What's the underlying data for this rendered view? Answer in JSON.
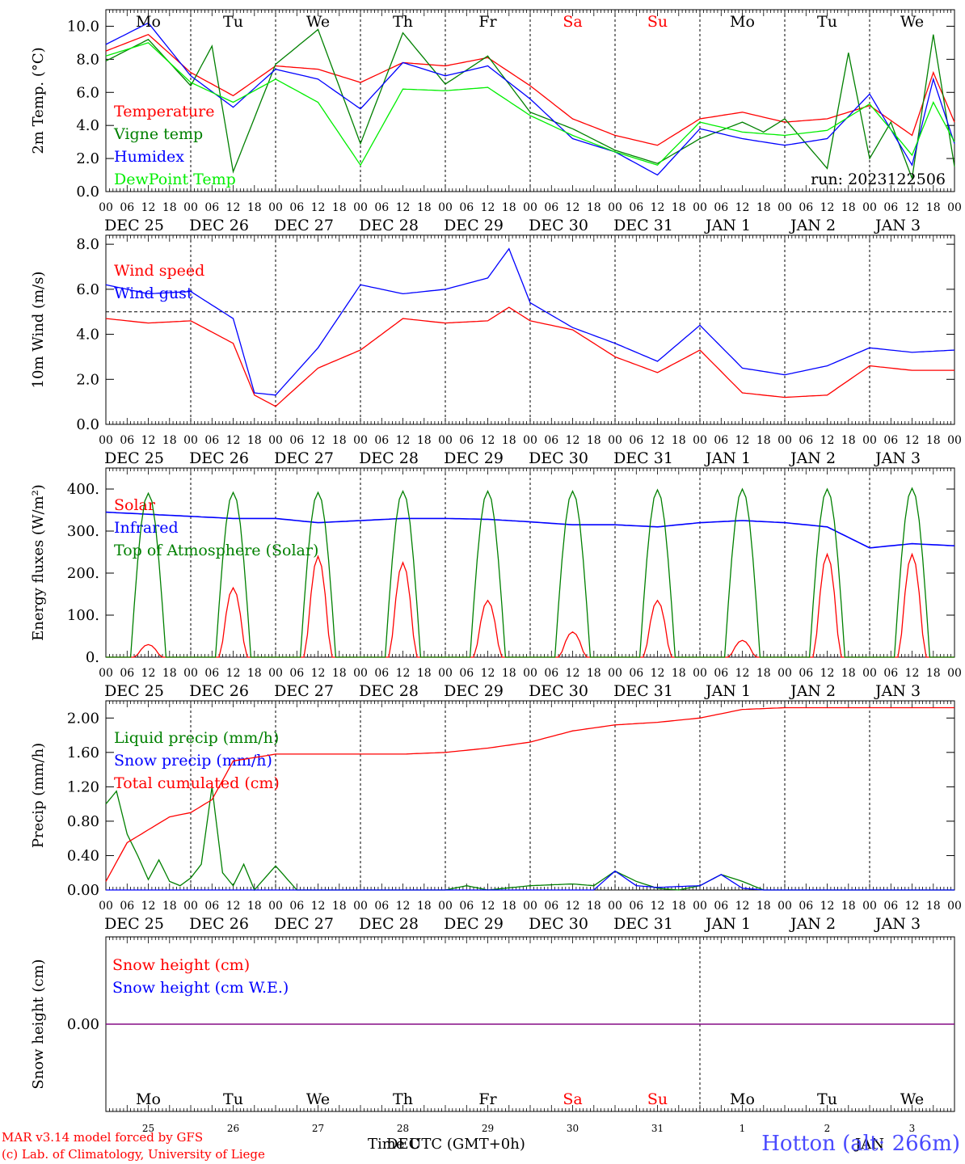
{
  "colors": {
    "red": "#ff0000",
    "green": "#008000",
    "blue": "#0000ff",
    "lightgreen": "#00ee00",
    "purple": "#800080",
    "black": "#000000"
  },
  "time_axis": {
    "hour_labels": [
      "00",
      "06",
      "12",
      "18"
    ],
    "final_label": "00",
    "day_labels": [
      "DEC 25",
      "DEC 26",
      "DEC 27",
      "DEC 28",
      "DEC 29",
      "DEC 30",
      "DEC 31",
      "JAN  1",
      "JAN  2",
      "JAN  3"
    ],
    "weekdays": [
      "Mo",
      "Tu",
      "We",
      "Th",
      "Fr",
      "Sa",
      "Su",
      "Mo",
      "Tu",
      "We"
    ],
    "weekend_color_days": [
      5,
      6
    ],
    "day_numbers": [
      "25",
      "26",
      "27",
      "28",
      "29",
      "30",
      "31",
      "1",
      "2",
      "3"
    ]
  },
  "footer": {
    "xlabel": "Time UTC (GMT+0h)",
    "overlap_label_1": "DEC",
    "overlap_label_2": "JAN",
    "credit_line1": "MAR v3.14 model forced by GFS",
    "credit_line2": "(c) Lab. of Climatology, University of Liege",
    "station": "Hotton (alt: 266m)"
  },
  "chart_data": [
    {
      "type": "line",
      "ylabel": "2m Temp. (°C)",
      "ylim": [
        0,
        11
      ],
      "yticks": [
        "0.0",
        "2.0",
        "4.0",
        "6.0",
        "8.0",
        "10.0"
      ],
      "annotation": "run: 2023122506",
      "series": [
        {
          "name": "Temperature",
          "color": "#ff0000",
          "x": [
            0,
            12,
            24,
            36,
            48,
            60,
            72,
            84,
            96,
            108,
            120,
            132,
            144,
            156,
            168,
            180,
            192,
            204,
            216,
            228,
            234,
            240
          ],
          "y": [
            8.5,
            9.5,
            7.2,
            5.8,
            7.6,
            7.4,
            6.6,
            7.8,
            7.6,
            8.1,
            6.4,
            4.4,
            3.4,
            2.8,
            4.4,
            4.8,
            4.2,
            4.4,
            5.2,
            3.4,
            7.2,
            4.2
          ]
        },
        {
          "name": "Vigne temp",
          "color": "#008000",
          "x": [
            0,
            12,
            24,
            30,
            36,
            48,
            60,
            72,
            84,
            96,
            108,
            120,
            132,
            144,
            156,
            168,
            180,
            186,
            192,
            204,
            210,
            216,
            222,
            228,
            234,
            240
          ],
          "y": [
            7.9,
            9.2,
            6.4,
            8.8,
            1.2,
            7.7,
            9.8,
            2.9,
            9.6,
            6.5,
            8.2,
            4.8,
            3.8,
            2.5,
            1.7,
            3.2,
            4.2,
            3.6,
            4.4,
            1.4,
            8.4,
            2.0,
            4.2,
            0.8,
            9.5,
            1.5
          ]
        },
        {
          "name": "Humidex",
          "color": "#0000ff",
          "x": [
            0,
            12,
            24,
            36,
            48,
            60,
            72,
            84,
            96,
            108,
            120,
            132,
            144,
            156,
            168,
            180,
            192,
            204,
            216,
            228,
            234,
            240
          ],
          "y": [
            8.9,
            10.2,
            7.0,
            5.1,
            7.4,
            6.8,
            5.0,
            7.8,
            7.0,
            7.6,
            5.6,
            3.2,
            2.4,
            1.0,
            3.8,
            3.2,
            2.8,
            3.2,
            5.9,
            1.6,
            6.8,
            2.9
          ]
        },
        {
          "name": "DewPoint Temp",
          "color": "#00ee00",
          "x": [
            0,
            12,
            24,
            36,
            48,
            60,
            72,
            84,
            96,
            108,
            120,
            132,
            144,
            156,
            168,
            180,
            192,
            204,
            216,
            228,
            234,
            240
          ],
          "y": [
            8.2,
            9.0,
            6.6,
            5.4,
            6.8,
            5.4,
            1.6,
            6.2,
            6.1,
            6.3,
            4.6,
            3.4,
            2.4,
            1.6,
            4.2,
            3.6,
            3.4,
            3.7,
            5.3,
            2.2,
            5.4,
            3.0
          ]
        }
      ]
    },
    {
      "type": "line",
      "ylabel": "10m Wind (m/s)",
      "ylim": [
        0,
        8.4
      ],
      "yticks": [
        "0.0",
        "2.0",
        "4.0",
        "6.0",
        "8.0"
      ],
      "reference_line": 5,
      "series": [
        {
          "name": "Wind speed",
          "color": "#ff0000",
          "x": [
            0,
            12,
            24,
            36,
            42,
            48,
            60,
            72,
            84,
            96,
            108,
            114,
            120,
            132,
            144,
            156,
            168,
            180,
            192,
            204,
            216,
            228,
            240
          ],
          "y": [
            4.7,
            4.5,
            4.6,
            3.6,
            1.3,
            0.8,
            2.5,
            3.3,
            4.7,
            4.5,
            4.6,
            5.2,
            4.6,
            4.2,
            3.0,
            2.3,
            3.3,
            1.4,
            1.2,
            1.3,
            2.6,
            2.4,
            2.4
          ]
        },
        {
          "name": "Wind gust",
          "color": "#0000ff",
          "x": [
            0,
            12,
            24,
            36,
            42,
            48,
            60,
            72,
            84,
            96,
            108,
            114,
            120,
            132,
            144,
            156,
            168,
            180,
            192,
            204,
            216,
            228,
            240
          ],
          "y": [
            6.2,
            5.8,
            5.9,
            4.7,
            1.4,
            1.3,
            3.4,
            6.2,
            5.8,
            6.0,
            6.5,
            7.8,
            5.4,
            4.3,
            3.6,
            2.8,
            4.4,
            2.5,
            2.2,
            2.6,
            3.4,
            3.2,
            3.3
          ]
        }
      ]
    },
    {
      "type": "line",
      "ylabel": "Energy fluxes (W/m²)",
      "ylim": [
        0,
        450
      ],
      "yticks": [
        "0.",
        "100.",
        "200.",
        "300.",
        "400."
      ],
      "series": [
        {
          "name": "Solar",
          "color": "#ff0000",
          "day_peaks": [
            30,
            165,
            240,
            225,
            135,
            60,
            135,
            40,
            245,
            245
          ]
        },
        {
          "name": "Infrared",
          "color": "#0000ff",
          "x": [
            0,
            24,
            36,
            48,
            60,
            72,
            84,
            96,
            108,
            120,
            132,
            144,
            156,
            168,
            180,
            192,
            204,
            216,
            228,
            240
          ],
          "y": [
            345,
            335,
            330,
            330,
            320,
            325,
            330,
            330,
            328,
            322,
            315,
            315,
            310,
            320,
            325,
            320,
            310,
            260,
            270,
            265
          ]
        },
        {
          "name": "Top of Atmosphere (Solar)",
          "color": "#008000",
          "day_peaks": [
            390,
            392,
            392,
            395,
            395,
            395,
            398,
            400,
            400,
            402
          ]
        }
      ]
    },
    {
      "type": "line",
      "ylabel": "Precip (mm/h)",
      "ylim": [
        0,
        2.2
      ],
      "yticks": [
        "0.00",
        "0.40",
        "0.80",
        "1.20",
        "1.60",
        "2.00"
      ],
      "series": [
        {
          "name": "Liquid precip (mm/h)",
          "color": "#008000",
          "x": [
            0,
            3,
            6,
            9,
            12,
            15,
            18,
            21,
            24,
            27,
            30,
            33,
            36,
            39,
            42,
            48,
            54,
            60,
            72,
            96,
            102,
            108,
            120,
            132,
            138,
            144,
            150,
            156,
            162,
            168,
            174,
            180,
            186,
            192,
            216,
            240
          ],
          "y": [
            1.0,
            1.15,
            0.65,
            0.4,
            0.12,
            0.35,
            0.1,
            0.05,
            0.14,
            0.3,
            1.2,
            0.2,
            0.05,
            0.3,
            0.0,
            0.28,
            0.0,
            0.0,
            0.0,
            0.0,
            0.05,
            0.0,
            0.05,
            0.07,
            0.05,
            0.22,
            0.1,
            0.02,
            0.0,
            0.05,
            0.18,
            0.1,
            0.0,
            0.0,
            0.0,
            0.0
          ]
        },
        {
          "name": "Snow precip (mm/h)",
          "color": "#0000ff",
          "x": [
            0,
            132,
            138,
            144,
            150,
            156,
            168,
            174,
            180,
            186,
            192,
            240
          ],
          "y": [
            0,
            0,
            0,
            0.22,
            0.05,
            0.03,
            0.05,
            0.18,
            0.02,
            0.0,
            0.0,
            0.0
          ]
        },
        {
          "name": "Total cumulated (cm)",
          "color": "#ff0000",
          "x": [
            0,
            6,
            12,
            18,
            24,
            30,
            36,
            48,
            60,
            72,
            84,
            96,
            108,
            120,
            132,
            144,
            156,
            168,
            180,
            186,
            192,
            240
          ],
          "y": [
            0.1,
            0.55,
            0.7,
            0.85,
            0.9,
            1.05,
            1.5,
            1.58,
            1.58,
            1.58,
            1.58,
            1.6,
            1.65,
            1.72,
            1.85,
            1.92,
            1.95,
            2.0,
            2.1,
            2.11,
            2.12,
            2.12
          ]
        }
      ]
    },
    {
      "type": "line",
      "ylabel": "Snow height (cm)",
      "yticks": [
        "0.00"
      ],
      "series": [
        {
          "name": "Snow height (cm)",
          "color": "#ff0000",
          "x": [
            0,
            240
          ],
          "y": [
            0,
            0
          ]
        },
        {
          "name": "Snow height (cm W.E.)",
          "color": "#0000ff",
          "x": [
            0,
            240
          ],
          "y": [
            0,
            0
          ]
        }
      ]
    }
  ]
}
